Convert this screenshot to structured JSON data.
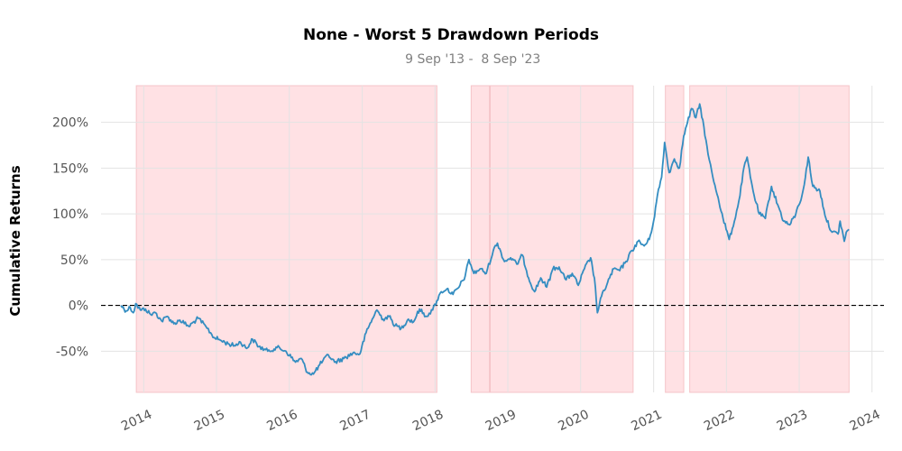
{
  "chart_data": {
    "type": "line",
    "title": "None - Worst 5 Drawdown Periods",
    "subtitle": " 9 Sep '13 -  8 Sep '23",
    "xlabel": "",
    "ylabel": "Cumulative Returns",
    "xlim": [
      "2013-06-01",
      "2024-03-01"
    ],
    "ylim": [
      -95,
      240
    ],
    "y_ticks": [
      {
        "value": -50,
        "label": "-50%"
      },
      {
        "value": 0,
        "label": "0%"
      },
      {
        "value": 50,
        "label": "50%"
      },
      {
        "value": 100,
        "label": "100%"
      },
      {
        "value": 150,
        "label": "150%"
      },
      {
        "value": 200,
        "label": "200%"
      }
    ],
    "x_ticks": [
      {
        "value": "2014-01-01",
        "label": "2014"
      },
      {
        "value": "2015-01-01",
        "label": "2015"
      },
      {
        "value": "2016-01-01",
        "label": "2016"
      },
      {
        "value": "2017-01-01",
        "label": "2017"
      },
      {
        "value": "2018-01-01",
        "label": "2018"
      },
      {
        "value": "2019-01-01",
        "label": "2019"
      },
      {
        "value": "2020-01-01",
        "label": "2020"
      },
      {
        "value": "2021-01-01",
        "label": "2021"
      },
      {
        "value": "2022-01-01",
        "label": "2022"
      },
      {
        "value": "2023-01-01",
        "label": "2023"
      },
      {
        "value": "2024-01-01",
        "label": "2024"
      }
    ],
    "grid": true,
    "zero_line": {
      "value": 0,
      "style": "dashed",
      "color": "#000000"
    },
    "drawdown_periods": [
      {
        "start": "2013-11-25",
        "end": "2018-01-10"
      },
      {
        "start": "2018-07-01",
        "end": "2020-09-20"
      },
      {
        "start": "2018-10-01",
        "end": "2018-10-01"
      },
      {
        "start": "2021-03-01",
        "end": "2021-06-01"
      },
      {
        "start": "2021-07-01",
        "end": "2023-09-08"
      }
    ],
    "series": [
      {
        "line_color": "#348dc1",
        "points": [
          [
            "2013-09-09",
            0
          ],
          [
            "2013-10-05",
            -6
          ],
          [
            "2013-10-25",
            -2
          ],
          [
            "2013-11-10",
            -8
          ],
          [
            "2013-11-22",
            2
          ],
          [
            "2013-12-15",
            -5
          ],
          [
            "2014-01-10",
            -4
          ],
          [
            "2014-02-05",
            -10
          ],
          [
            "2014-03-01",
            -8
          ],
          [
            "2014-04-01",
            -17
          ],
          [
            "2014-05-01",
            -12
          ],
          [
            "2014-06-01",
            -20
          ],
          [
            "2014-07-01",
            -16
          ],
          [
            "2014-08-15",
            -23
          ],
          [
            "2014-10-01",
            -14
          ],
          [
            "2014-11-15",
            -25
          ],
          [
            "2014-12-20",
            -35
          ],
          [
            "2015-01-20",
            -38
          ],
          [
            "2015-03-01",
            -42
          ],
          [
            "2015-04-01",
            -44
          ],
          [
            "2015-05-01",
            -40
          ],
          [
            "2015-06-01",
            -47
          ],
          [
            "2015-07-01",
            -37
          ],
          [
            "2015-08-01",
            -45
          ],
          [
            "2015-09-15",
            -50
          ],
          [
            "2015-11-01",
            -46
          ],
          [
            "2015-12-15",
            -50
          ],
          [
            "2016-02-01",
            -62
          ],
          [
            "2016-03-01",
            -58
          ],
          [
            "2016-04-01",
            -73
          ],
          [
            "2016-05-01",
            -75
          ],
          [
            "2016-06-01",
            -65
          ],
          [
            "2016-07-15",
            -54
          ],
          [
            "2016-08-15",
            -62
          ],
          [
            "2016-10-01",
            -58
          ],
          [
            "2016-11-15",
            -52
          ],
          [
            "2016-12-20",
            -53
          ],
          [
            "2017-01-20",
            -30
          ],
          [
            "2017-02-20",
            -15
          ],
          [
            "2017-03-15",
            -5
          ],
          [
            "2017-04-15",
            -15
          ],
          [
            "2017-05-15",
            -12
          ],
          [
            "2017-06-15",
            -22
          ],
          [
            "2017-07-15",
            -25
          ],
          [
            "2017-08-20",
            -15
          ],
          [
            "2017-09-15",
            -18
          ],
          [
            "2017-10-15",
            -4
          ],
          [
            "2017-11-15",
            -12
          ],
          [
            "2017-12-20",
            -5
          ],
          [
            "2018-01-10",
            5
          ],
          [
            "2018-02-01",
            15
          ],
          [
            "2018-03-01",
            18
          ],
          [
            "2018-04-01",
            12
          ],
          [
            "2018-05-01",
            20
          ],
          [
            "2018-06-01",
            32
          ],
          [
            "2018-06-20",
            50
          ],
          [
            "2018-07-15",
            35
          ],
          [
            "2018-08-15",
            40
          ],
          [
            "2018-09-15",
            35
          ],
          [
            "2018-10-20",
            60
          ],
          [
            "2018-11-10",
            68
          ],
          [
            "2018-12-15",
            48
          ],
          [
            "2019-01-15",
            52
          ],
          [
            "2019-02-15",
            45
          ],
          [
            "2019-03-15",
            55
          ],
          [
            "2019-04-15",
            30
          ],
          [
            "2019-05-15",
            15
          ],
          [
            "2019-06-15",
            30
          ],
          [
            "2019-07-15",
            20
          ],
          [
            "2019-08-15",
            40
          ],
          [
            "2019-09-15",
            42
          ],
          [
            "2019-10-20",
            28
          ],
          [
            "2019-11-20",
            35
          ],
          [
            "2019-12-20",
            22
          ],
          [
            "2020-01-20",
            40
          ],
          [
            "2020-02-20",
            52
          ],
          [
            "2020-03-10",
            30
          ],
          [
            "2020-03-25",
            -8
          ],
          [
            "2020-04-15",
            10
          ],
          [
            "2020-05-15",
            25
          ],
          [
            "2020-06-15",
            40
          ],
          [
            "2020-07-15",
            38
          ],
          [
            "2020-08-15",
            48
          ],
          [
            "2020-09-15",
            60
          ],
          [
            "2020-10-15",
            70
          ],
          [
            "2020-11-15",
            65
          ],
          [
            "2020-12-10",
            72
          ],
          [
            "2021-01-01",
            92
          ],
          [
            "2021-01-20",
            120
          ],
          [
            "2021-02-10",
            140
          ],
          [
            "2021-02-25",
            178
          ],
          [
            "2021-03-20",
            145
          ],
          [
            "2021-04-15",
            160
          ],
          [
            "2021-05-10",
            150
          ],
          [
            "2021-06-01",
            185
          ],
          [
            "2021-06-20",
            200
          ],
          [
            "2021-07-10",
            215
          ],
          [
            "2021-08-01",
            205
          ],
          [
            "2021-08-20",
            220
          ],
          [
            "2021-09-10",
            195
          ],
          [
            "2021-10-01",
            165
          ],
          [
            "2021-10-25",
            140
          ],
          [
            "2021-11-20",
            118
          ],
          [
            "2021-12-15",
            95
          ],
          [
            "2022-01-15",
            72
          ],
          [
            "2022-02-10",
            92
          ],
          [
            "2022-03-10",
            120
          ],
          [
            "2022-03-25",
            145
          ],
          [
            "2022-04-15",
            162
          ],
          [
            "2022-05-01",
            140
          ],
          [
            "2022-05-20",
            120
          ],
          [
            "2022-06-15",
            100
          ],
          [
            "2022-07-15",
            95
          ],
          [
            "2022-08-15",
            130
          ],
          [
            "2022-09-15",
            110
          ],
          [
            "2022-10-15",
            92
          ],
          [
            "2022-11-15",
            88
          ],
          [
            "2022-12-15",
            100
          ],
          [
            "2023-01-15",
            120
          ],
          [
            "2023-02-01",
            140
          ],
          [
            "2023-02-15",
            162
          ],
          [
            "2023-03-10",
            130
          ],
          [
            "2023-04-15",
            125
          ],
          [
            "2023-05-15",
            95
          ],
          [
            "2023-06-15",
            80
          ],
          [
            "2023-07-15",
            78
          ],
          [
            "2023-07-25",
            92
          ],
          [
            "2023-08-15",
            70
          ],
          [
            "2023-08-25",
            80
          ],
          [
            "2023-09-08",
            83
          ]
        ]
      }
    ]
  }
}
